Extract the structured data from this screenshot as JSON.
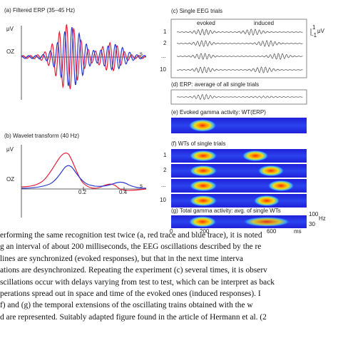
{
  "panels": {
    "a": {
      "letter": "(a)",
      "title": "Filtered ERP (35–45 Hz)",
      "unit": "μV",
      "channel": "OZ",
      "s": "s"
    },
    "b": {
      "letter": "(b)",
      "title": "Wavelet transform (40 Hz)",
      "unit": "μV",
      "channel": "OZ",
      "tick1": "0.2",
      "tick2": "0.4",
      "s": "s"
    },
    "c": {
      "letter": "(c)",
      "title": "Single EEG trials",
      "evoked": "evoked",
      "induced": "induced",
      "rows": [
        "1",
        "2",
        "...",
        "10"
      ],
      "scale_top": "1",
      "scale_bottom": "-1",
      "scale_unit": "μV"
    },
    "d": {
      "letter": "(d)",
      "title": "ERP: average of all single trials"
    },
    "e": {
      "letter": "(e)",
      "title": "Evoked gamma activity: WT(ERP)"
    },
    "f": {
      "letter": "(f)",
      "title": "WTs of single trials",
      "rows": [
        "1",
        "2",
        "...",
        "10"
      ]
    },
    "g": {
      "letter": "(g)",
      "title": "Total gamma activity: avg. of single WTs",
      "hz_top": "100",
      "hz_unit": "Hz",
      "hz_bottom": "30",
      "x0": "0",
      "x1": "200",
      "x2": "600",
      "xunit": "ms"
    }
  },
  "caption_lines": [
    "erforming the same recognition test twice (a, red trace and blue trace), it is noted",
    "g an interval of about 200 milliseconds, the EEG oscillations described by the re",
    "lines are synchronized (evoked responses), but that in the next time interva",
    "ations are desynchronized. Repeating the experiment (c) several times, it is observ",
    "scillations occur with delays varying from test to test, which can be interpret as back",
    "perations spread out in space and time of the evoked ones (induced responses). I",
    "f) and (g) the temporal extensions of the oscillating trains obtained with the w",
    "d are represented. Suitably adapted figure found in the article of Hermann et al. (2"
  ]
}
